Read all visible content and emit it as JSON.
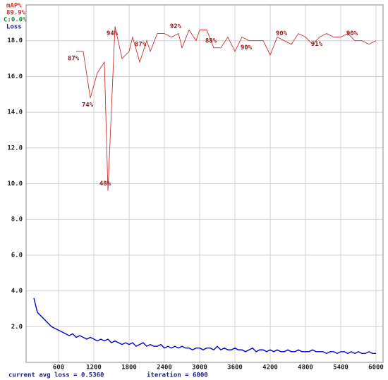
{
  "chart_data": {
    "type": "line",
    "series": [
      {
        "name": "mAP%",
        "color": "#c83232",
        "axis": "y2",
        "x": [
          900,
          1020,
          1140,
          1260,
          1380,
          1440,
          1560,
          1680,
          1800,
          1860,
          1980,
          2040,
          2100,
          2160,
          2280,
          2400,
          2520,
          2640,
          2700,
          2820,
          2940,
          3000,
          3120,
          3240,
          3360,
          3480,
          3600,
          3720,
          3840,
          3960,
          4080,
          4200,
          4320,
          4440,
          4560,
          4680,
          4800,
          4920,
          5040,
          5160,
          5280,
          5400,
          5520,
          5640,
          5760,
          5880,
          6000
        ],
        "values": [
          87,
          87,
          74,
          81,
          84,
          48,
          94,
          85,
          87,
          91,
          84,
          87,
          90,
          87,
          92,
          92,
          91,
          92,
          88,
          93,
          90,
          93,
          93,
          88,
          88,
          91,
          87,
          91,
          90,
          90,
          90,
          86,
          91,
          90,
          89,
          92,
          91,
          89,
          91,
          92,
          91,
          91,
          92,
          90,
          90,
          89,
          90
        ],
        "value_labels": [
          "87%",
          null,
          "74%",
          null,
          null,
          "48%",
          "94%",
          null,
          null,
          null,
          null,
          "87%",
          null,
          null,
          null,
          null,
          null,
          "92%",
          null,
          null,
          null,
          null,
          null,
          "88%",
          null,
          null,
          null,
          null,
          "90%",
          null,
          null,
          null,
          null,
          "90%",
          null,
          null,
          null,
          null,
          "91%",
          null,
          null,
          null,
          null,
          "90%",
          null,
          null,
          null
        ]
      },
      {
        "name": "Loss",
        "color": "#0000d0",
        "x": [
          180,
          240,
          300,
          360,
          420,
          480,
          540,
          600,
          660,
          720,
          780,
          840,
          900,
          960,
          1020,
          1080,
          1140,
          1200,
          1260,
          1320,
          1380,
          1440,
          1500,
          1560,
          1620,
          1680,
          1740,
          1800,
          1860,
          1920,
          1980,
          2040,
          2100,
          2160,
          2220,
          2280,
          2340,
          2400,
          2460,
          2520,
          2580,
          2640,
          2700,
          2760,
          2820,
          2880,
          2940,
          3000,
          3060,
          3120,
          3180,
          3240,
          3300,
          3360,
          3420,
          3480,
          3540,
          3600,
          3660,
          3720,
          3780,
          3840,
          3900,
          3960,
          4020,
          4080,
          4140,
          4200,
          4260,
          4320,
          4380,
          4440,
          4500,
          4560,
          4620,
          4680,
          4740,
          4800,
          4860,
          4920,
          4980,
          5040,
          5100,
          5160,
          5220,
          5280,
          5340,
          5400,
          5460,
          5520,
          5580,
          5640,
          5700,
          5760,
          5820,
          5880,
          5940,
          6000
        ],
        "values": [
          3.6,
          2.8,
          2.6,
          2.4,
          2.2,
          2.0,
          1.9,
          1.8,
          1.7,
          1.6,
          1.5,
          1.6,
          1.4,
          1.5,
          1.4,
          1.3,
          1.4,
          1.3,
          1.2,
          1.3,
          1.2,
          1.3,
          1.1,
          1.2,
          1.1,
          1.0,
          1.1,
          1.0,
          1.1,
          0.9,
          1.0,
          1.1,
          0.9,
          1.0,
          0.9,
          0.9,
          1.0,
          0.8,
          0.9,
          0.8,
          0.9,
          0.8,
          0.9,
          0.8,
          0.8,
          0.7,
          0.8,
          0.8,
          0.7,
          0.8,
          0.8,
          0.7,
          0.9,
          0.7,
          0.8,
          0.7,
          0.7,
          0.8,
          0.7,
          0.7,
          0.6,
          0.7,
          0.8,
          0.6,
          0.7,
          0.7,
          0.6,
          0.7,
          0.6,
          0.7,
          0.6,
          0.6,
          0.7,
          0.6,
          0.6,
          0.7,
          0.6,
          0.6,
          0.6,
          0.7,
          0.6,
          0.6,
          0.6,
          0.5,
          0.6,
          0.6,
          0.5,
          0.6,
          0.6,
          0.5,
          0.6,
          0.5,
          0.6,
          0.5,
          0.5,
          0.6,
          0.5,
          0.5
        ]
      }
    ],
    "best_map": "89.9%",
    "class_label": "C:0.0%",
    "status_loss": "current avg loss = 0.5360",
    "status_iteration": "iteration = 6000",
    "xlim": [
      48,
      6120
    ],
    "xticks": [
      600,
      1200,
      1800,
      2400,
      3000,
      3600,
      4200,
      4800,
      5400,
      6000
    ],
    "ylim": [
      0,
      20
    ],
    "yticks": [
      {
        "value": 2,
        "label": "2.0"
      },
      {
        "value": 4,
        "label": "4.0"
      },
      {
        "value": 6,
        "label": "6.0"
      },
      {
        "value": 8,
        "label": "8.0"
      },
      {
        "value": 10,
        "label": "10.0"
      },
      {
        "value": 12,
        "label": "12.0"
      },
      {
        "value": 14,
        "label": "14.0"
      },
      {
        "value": 16,
        "label": "16.0"
      },
      {
        "value": 18,
        "label": "18.0"
      }
    ],
    "y2lim": [
      0,
      100
    ],
    "grid": true
  }
}
